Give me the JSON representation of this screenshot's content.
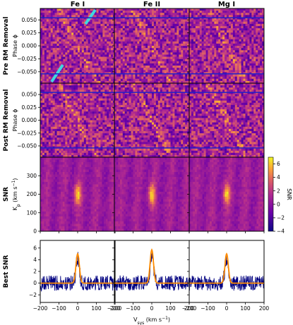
{
  "chart_data": {
    "type": "heatmap",
    "columns": [
      "Fe I",
      "Fe II",
      "Mg I"
    ],
    "rows": [
      {
        "title": "Pre RM Removal",
        "ylabel": "Phase ϕ",
        "kind": "phase",
        "ytick_labels": [
          "0.050",
          "0.025",
          "0.000",
          "−0.025",
          "−0.050"
        ],
        "ytick_values": [
          0.05,
          0.025,
          0.0,
          -0.025,
          -0.05
        ],
        "ylim": [
          -0.072,
          0.072
        ],
        "transit_lines": [
          0.054,
          -0.054
        ]
      },
      {
        "title": "Post RM Removal",
        "ylabel": "Phase ϕ",
        "kind": "phase",
        "ytick_labels": [
          "0.050",
          "0.025",
          "0.000",
          "−0.025",
          "−0.050"
        ],
        "ytick_values": [
          0.05,
          0.025,
          0.0,
          -0.025,
          -0.05
        ],
        "ylim": [
          -0.072,
          0.072
        ],
        "transit_lines": [
          0.054,
          -0.054
        ]
      },
      {
        "title": "SNR",
        "ylabel": "Kp (km s⁻¹)",
        "ylabel_main": "K",
        "ylabel_sub": "p",
        "ylabel_unit": " (km s",
        "ylabel_sup": "−1",
        "ylabel_end": ")",
        "kind": "snrmap",
        "ytick_labels": [
          "0",
          "100",
          "200",
          "300"
        ],
        "ytick_values": [
          0,
          100,
          200,
          300
        ],
        "ylim": [
          0,
          400
        ],
        "peak_kp": [
          200,
          200,
          200
        ]
      },
      {
        "title": "Best SNR",
        "ylabel": "",
        "kind": "line",
        "ytick_labels": [
          "−2",
          "0",
          "2",
          "4",
          "6"
        ],
        "ytick_values": [
          -2,
          0,
          2,
          4,
          6
        ],
        "ylim": [
          -3.3,
          7.3
        ]
      }
    ],
    "xlabel": "Vsys (km s⁻¹)",
    "xlabel_main": "V",
    "xlabel_sub": "sys",
    "xlabel_unit": " (km s",
    "xlabel_sup": "−1",
    "xlabel_end": ")",
    "xtick_labels": [
      "−200",
      "−100",
      "0",
      "100",
      "200"
    ],
    "xtick_values": [
      -200,
      -100,
      0,
      100,
      200
    ],
    "xlim": [
      -200,
      200
    ],
    "colorbar": {
      "label": "SNR",
      "range": [
        -4,
        7
      ],
      "tick_labels": [
        "−4",
        "−2",
        "0",
        "2",
        "4",
        "6"
      ],
      "tick_values": [
        -4,
        -2,
        0,
        2,
        4,
        6
      ]
    },
    "best_snr_peaks": [
      {
        "column": "Fe I",
        "vsys": 0,
        "snr": 5.0
      },
      {
        "column": "Fe II",
        "vsys": 0,
        "snr": 5.7
      },
      {
        "column": "Mg I",
        "vsys": 0,
        "snr": 5.0
      }
    ],
    "colors": {
      "data_line": "#000080",
      "fit_line": "#ff8c00",
      "transit_line": "#2020c8",
      "rm_overlay": "#40d8e0"
    },
    "colormap": "plasma"
  }
}
